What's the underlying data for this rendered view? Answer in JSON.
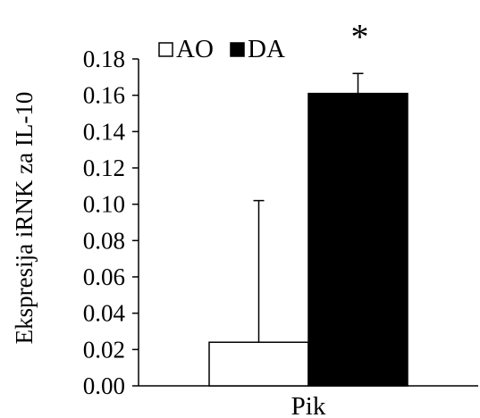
{
  "chart_data": {
    "type": "bar",
    "categories": [
      "Pik"
    ],
    "series": [
      {
        "name": "AO",
        "values": [
          0.024
        ],
        "error": [
          0.078
        ],
        "color": "#ffffff"
      },
      {
        "name": "DA",
        "values": [
          0.161
        ],
        "error": [
          0.011
        ],
        "color": "#000000"
      }
    ],
    "title": "",
    "xlabel": "",
    "ylabel": "Ekspresija iRNK za IL-10",
    "ylim": [
      0,
      0.18
    ],
    "yticks": [
      "0.00",
      "0.02",
      "0.04",
      "0.06",
      "0.08",
      "0.10",
      "0.12",
      "0.14",
      "0.16",
      "0.18"
    ],
    "grid": false,
    "legend_position": "top-left",
    "annotations": [
      {
        "text": "*",
        "series": "DA",
        "category": "Pik"
      }
    ]
  }
}
